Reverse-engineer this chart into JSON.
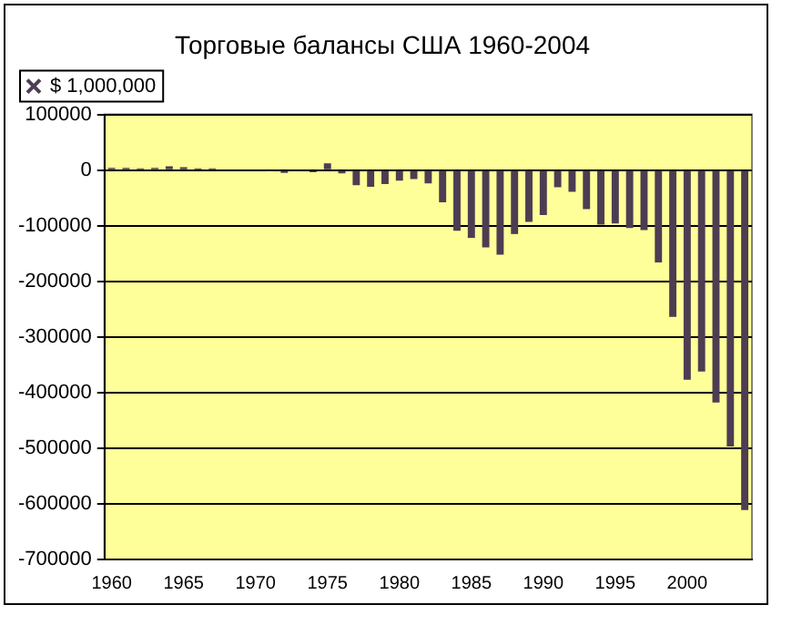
{
  "chart_data": {
    "type": "bar",
    "title": "Торговые балансы США 1960-2004",
    "categories": [
      "1960",
      null,
      null,
      null,
      null,
      "1965",
      null,
      null,
      null,
      null,
      "1970",
      null,
      null,
      null,
      null,
      "1975",
      null,
      null,
      null,
      null,
      "1980",
      null,
      null,
      null,
      null,
      "1985",
      null,
      null,
      null,
      null,
      "1990",
      null,
      null,
      null,
      null,
      "1995",
      null,
      null,
      null,
      null,
      "2000",
      null,
      null,
      null,
      null
    ],
    "series": [
      {
        "name": "$ 1,000,000",
        "color": "#4d3d52",
        "values": [
          4000,
          4000,
          3000,
          4000,
          7000,
          5000,
          3000,
          3000,
          0,
          0,
          null,
          -1000,
          -5000,
          null,
          -4000,
          12000,
          -6000,
          -27000,
          -30000,
          -25000,
          -19000,
          -16000,
          -24000,
          -58000,
          -109000,
          -122000,
          -139000,
          -152000,
          -115000,
          -93000,
          -81000,
          -31000,
          -39000,
          -70000,
          -98000,
          -96000,
          -104000,
          -108000,
          -166000,
          -264000,
          -377000,
          -362000,
          -418000,
          -497000,
          -611000
        ]
      }
    ],
    "ylim": [
      -700000,
      100000
    ],
    "yticks": [
      -700000,
      -600000,
      -500000,
      -400000,
      -300000,
      -200000,
      -100000,
      0,
      100000
    ],
    "grid": "y",
    "legend": "top left",
    "marker": "cross"
  }
}
